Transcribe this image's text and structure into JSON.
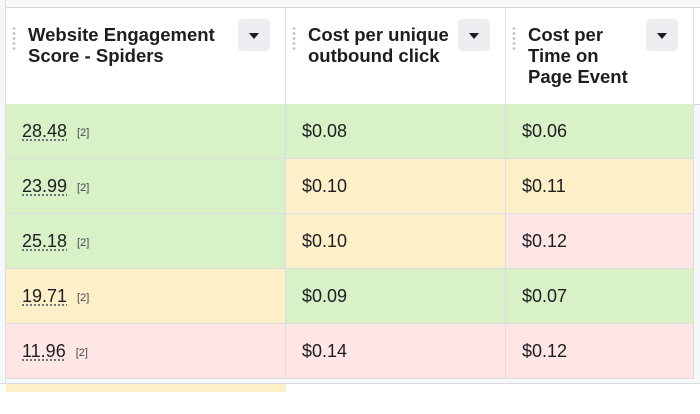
{
  "columns": [
    {
      "label": "Website Engagement Score - Spiders",
      "line1": "Website Engagement",
      "line2": "Score - Spiders",
      "menu_icon": "chevron-down-icon"
    },
    {
      "label": "Cost per unique outbound click",
      "line1": "Cost per unique",
      "line2": "outbound click",
      "menu_icon": "chevron-down-icon"
    },
    {
      "label": "Cost per Time on Page Event",
      "line1": "Cost per",
      "line2": "Time on",
      "line3": "Page Event",
      "menu_icon": "chevron-down-icon"
    }
  ],
  "rows": [
    {
      "score": "28.48",
      "badge": "[2]",
      "cpc": "$0.08",
      "cpt": "$0.06",
      "colors": [
        "#d9f1c6",
        "#d9f1c6",
        "#d9f1c6"
      ]
    },
    {
      "score": "23.99",
      "badge": "[2]",
      "cpc": "$0.10",
      "cpt": "$0.11",
      "colors": [
        "#d9f1c6",
        "#fdefc8",
        "#fdefc8"
      ]
    },
    {
      "score": "25.18",
      "badge": "[2]",
      "cpc": "$0.10",
      "cpt": "$0.12",
      "colors": [
        "#d9f1c6",
        "#fdefc8",
        "#fde6e4"
      ]
    },
    {
      "score": "19.71",
      "badge": "[2]",
      "cpc": "$0.09",
      "cpt": "$0.07",
      "colors": [
        "#fdefc8",
        "#d9f1c6",
        "#d9f1c6"
      ]
    },
    {
      "score": "11.96",
      "badge": "[2]",
      "cpc": "$0.14",
      "cpt": "$0.12",
      "colors": [
        "#fde6e4",
        "#fde6e4",
        "#fde6e4"
      ]
    }
  ],
  "colors": {
    "good": "#d9f1c6",
    "mid": "#fdefc8",
    "bad": "#fde6e4"
  }
}
